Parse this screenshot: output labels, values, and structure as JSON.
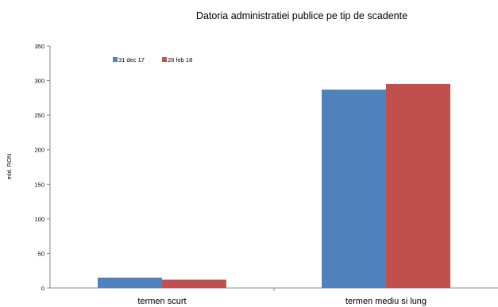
{
  "chart_data": {
    "type": "bar",
    "title": "Datoria administratiei publice  pe tip de scadente",
    "xlabel": "",
    "ylabel": "mld. RON",
    "categories": [
      "termen scurt",
      "termen mediu si lung"
    ],
    "series": [
      {
        "name": "31 dec 17",
        "values": [
          15,
          287
        ],
        "color": "#4f81bd"
      },
      {
        "name": "28 feb 18",
        "values": [
          12,
          295
        ],
        "color": "#c0504d"
      }
    ],
    "ylim": [
      0,
      350
    ],
    "yticks": [
      0,
      50,
      100,
      150,
      200,
      250,
      300,
      350
    ],
    "grid": false,
    "legend_position": "top-left"
  }
}
